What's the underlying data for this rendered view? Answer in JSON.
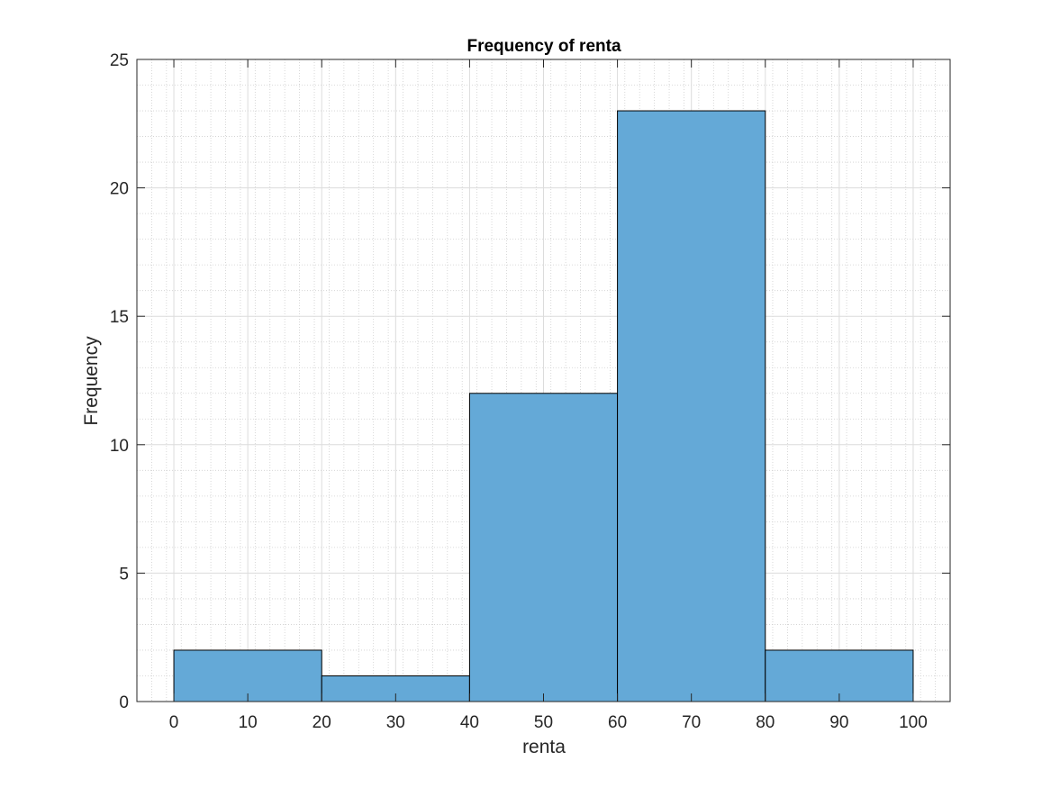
{
  "chart_data": {
    "type": "bar",
    "title": "Frequency of renta",
    "xlabel": "renta",
    "ylabel": "Frequency",
    "bins": [
      {
        "start": 0,
        "end": 20,
        "count": 2
      },
      {
        "start": 20,
        "end": 40,
        "count": 1
      },
      {
        "start": 40,
        "end": 60,
        "count": 12
      },
      {
        "start": 60,
        "end": 80,
        "count": 23
      },
      {
        "start": 80,
        "end": 100,
        "count": 2
      }
    ],
    "xlim": [
      -5,
      105
    ],
    "ylim": [
      0,
      25
    ],
    "xticks": [
      0,
      10,
      20,
      30,
      40,
      50,
      60,
      70,
      80,
      90,
      100
    ],
    "yticks": [
      0,
      5,
      10,
      15,
      20,
      25
    ],
    "grid": "on",
    "minor_grid": "on",
    "bar_color": "#64a9d7",
    "edge_color": "#000000"
  }
}
